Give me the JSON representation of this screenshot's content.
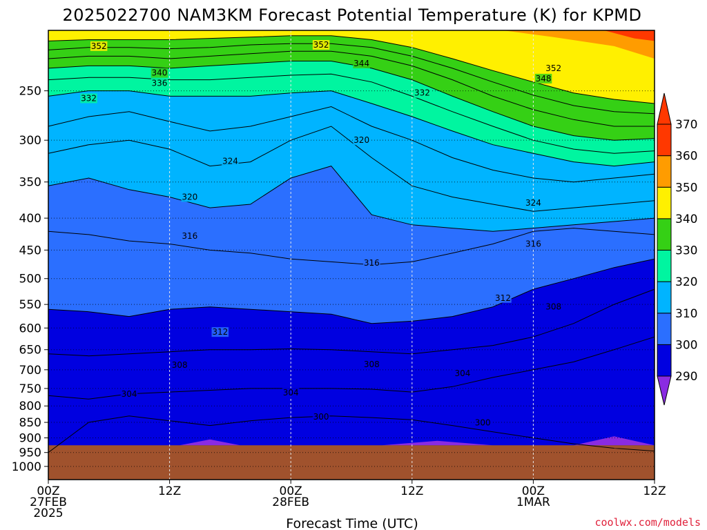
{
  "title": "2025022700 NAM3KM Forecast Potential Temperature (K) for KPMD",
  "credit": "coolwx.com/models",
  "colors": {
    "ground": "#a0522d",
    "bands": [
      "#8a2be2",
      "#0000e0",
      "#2b6fff",
      "#00b4ff",
      "#00f5a0",
      "#35d015",
      "#fff000",
      "#ff9c00",
      "#ff3800"
    ]
  },
  "chart_data": {
    "type": "contour",
    "xlabel": "Forecast Time (UTC)",
    "ylabel": "",
    "x_range_hours": [
      0,
      60
    ],
    "y_range_hPa": [
      200,
      1050
    ],
    "y_scale": "log-pressure",
    "grid": true,
    "x_ticks": [
      {
        "hour": 0,
        "lines": [
          "00Z",
          "27FEB",
          "2025"
        ]
      },
      {
        "hour": 12,
        "lines": [
          "12Z"
        ]
      },
      {
        "hour": 24,
        "lines": [
          "00Z",
          "28FEB"
        ]
      },
      {
        "hour": 36,
        "lines": [
          "12Z"
        ]
      },
      {
        "hour": 48,
        "lines": [
          "00Z",
          "1MAR"
        ]
      },
      {
        "hour": 60,
        "lines": [
          "12Z"
        ]
      }
    ],
    "y_ticks": [
      250,
      300,
      350,
      400,
      450,
      500,
      550,
      600,
      650,
      700,
      750,
      800,
      850,
      900,
      950,
      1000
    ],
    "ground_pressure_hPa": 925,
    "colorbar": {
      "levels": [
        290,
        300,
        310,
        320,
        330,
        340,
        350,
        360,
        370
      ],
      "position": "right"
    },
    "contour_interval_K": 2,
    "isentropes": [
      {
        "theta": 300,
        "p": [
          950,
          850,
          830,
          845,
          860,
          845,
          835,
          830,
          835,
          842,
          860,
          880,
          900,
          920,
          935,
          945
        ]
      },
      {
        "theta": 304,
        "p": [
          770,
          780,
          765,
          760,
          755,
          750,
          750,
          750,
          752,
          760,
          745,
          720,
          700,
          680,
          650,
          620
        ]
      },
      {
        "theta": 308,
        "p": [
          660,
          665,
          660,
          655,
          650,
          650,
          648,
          650,
          655,
          660,
          650,
          640,
          620,
          590,
          550,
          520
        ]
      },
      {
        "theta": 312,
        "p": [
          560,
          565,
          575,
          560,
          555,
          560,
          565,
          570,
          590,
          585,
          575,
          555,
          520,
          500,
          480,
          465
        ]
      },
      {
        "theta": 316,
        "p": [
          420,
          425,
          435,
          440,
          450,
          455,
          465,
          470,
          475,
          470,
          455,
          440,
          420,
          415,
          420,
          425
        ]
      },
      {
        "theta": 320,
        "p": [
          355,
          345,
          360,
          370,
          385,
          380,
          345,
          330,
          395,
          410,
          415,
          420,
          415,
          410,
          405,
          400
        ]
      },
      {
        "theta": 324,
        "p": [
          315,
          305,
          300,
          310,
          330,
          325,
          300,
          285,
          320,
          355,
          370,
          380,
          390,
          385,
          380,
          375
        ]
      },
      {
        "theta": 328,
        "p": [
          285,
          275,
          270,
          280,
          290,
          285,
          275,
          265,
          285,
          300,
          320,
          335,
          345,
          350,
          345,
          340
        ]
      },
      {
        "theta": 332,
        "p": [
          255,
          250,
          250,
          255,
          255,
          255,
          252,
          250,
          262,
          275,
          290,
          305,
          315,
          325,
          330,
          325
        ]
      },
      {
        "theta": 336,
        "p": [
          240,
          238,
          238,
          240,
          240,
          238,
          236,
          235,
          242,
          255,
          270,
          285,
          300,
          310,
          315,
          312
        ]
      },
      {
        "theta": 340,
        "p": [
          230,
          228,
          228,
          230,
          228,
          226,
          224,
          224,
          230,
          240,
          255,
          270,
          285,
          295,
          300,
          298
        ]
      },
      {
        "theta": 344,
        "p": [
          222,
          220,
          220,
          222,
          220,
          218,
          216,
          216,
          220,
          228,
          240,
          255,
          268,
          278,
          285,
          285
        ]
      },
      {
        "theta": 348,
        "p": [
          215,
          213,
          213,
          214,
          213,
          211,
          210,
          210,
          213,
          220,
          230,
          242,
          254,
          264,
          270,
          272
        ]
      },
      {
        "theta": 352,
        "p": [
          208,
          207,
          207,
          207,
          206,
          205,
          204,
          204,
          207,
          213,
          222,
          232,
          242,
          252,
          258,
          262
        ]
      }
    ],
    "contour_labels": [
      {
        "text": "352",
        "hour": 5,
        "p": 212
      },
      {
        "text": "352",
        "hour": 27,
        "p": 211
      },
      {
        "text": "344",
        "hour": 31,
        "p": 226
      },
      {
        "text": "352",
        "hour": 50,
        "p": 230
      },
      {
        "text": "348",
        "hour": 49,
        "p": 239
      },
      {
        "text": "340",
        "hour": 11,
        "p": 234
      },
      {
        "text": "336",
        "hour": 11,
        "p": 243
      },
      {
        "text": "332",
        "hour": 4,
        "p": 257
      },
      {
        "text": "332",
        "hour": 37,
        "p": 252
      },
      {
        "text": "320",
        "hour": 31,
        "p": 300
      },
      {
        "text": "324",
        "hour": 18,
        "p": 324
      },
      {
        "text": "324",
        "hour": 48,
        "p": 378
      },
      {
        "text": "320",
        "hour": 14,
        "p": 370
      },
      {
        "text": "316",
        "hour": 14,
        "p": 427
      },
      {
        "text": "316",
        "hour": 32,
        "p": 472
      },
      {
        "text": "316",
        "hour": 48,
        "p": 440
      },
      {
        "text": "312",
        "hour": 45,
        "p": 537
      },
      {
        "text": "308",
        "hour": 50,
        "p": 555
      },
      {
        "text": "312",
        "hour": 17,
        "p": 609
      },
      {
        "text": "308",
        "hour": 13,
        "p": 688
      },
      {
        "text": "308",
        "hour": 32,
        "p": 686
      },
      {
        "text": "304",
        "hour": 41,
        "p": 709
      },
      {
        "text": "304",
        "hour": 8,
        "p": 766
      },
      {
        "text": "304",
        "hour": 24,
        "p": 762
      },
      {
        "text": "300",
        "hour": 27,
        "p": 833
      },
      {
        "text": "300",
        "hour": 43,
        "p": 851
      }
    ]
  }
}
